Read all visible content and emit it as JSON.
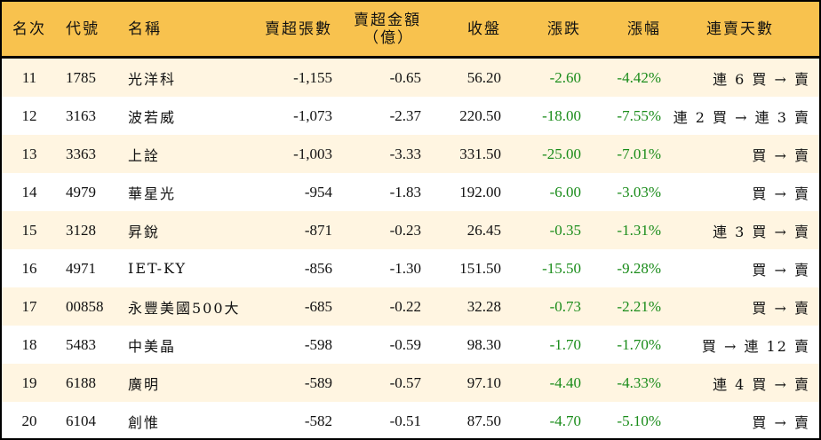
{
  "headers": {
    "rank": "名次",
    "code": "代號",
    "name": "名稱",
    "net_sell_lots": "賣超張數",
    "net_sell_amount": "賣超金額",
    "net_sell_amount_unit": "（億）",
    "close": "收盤",
    "change": "漲跌",
    "change_pct": "漲幅",
    "streak": "連賣天數"
  },
  "colors": {
    "header_bg": "#F8C24E",
    "alt_row_bg": "#FFF5E1",
    "negative": "#1A8C1A"
  },
  "rows": [
    {
      "rank": "11",
      "code": "1785",
      "name": "光洋科",
      "lots": "-1,155",
      "amount": "-0.65",
      "close": "56.20",
      "change": "-2.60",
      "pct": "-4.42%",
      "streak": "連 6 買 → 賣"
    },
    {
      "rank": "12",
      "code": "3163",
      "name": "波若威",
      "lots": "-1,073",
      "amount": "-2.37",
      "close": "220.50",
      "change": "-18.00",
      "pct": "-7.55%",
      "streak": "連 2 買 → 連 3 賣"
    },
    {
      "rank": "13",
      "code": "3363",
      "name": "上詮",
      "lots": "-1,003",
      "amount": "-3.33",
      "close": "331.50",
      "change": "-25.00",
      "pct": "-7.01%",
      "streak": "買 → 賣"
    },
    {
      "rank": "14",
      "code": "4979",
      "name": "華星光",
      "lots": "-954",
      "amount": "-1.83",
      "close": "192.00",
      "change": "-6.00",
      "pct": "-3.03%",
      "streak": "買 → 賣"
    },
    {
      "rank": "15",
      "code": "3128",
      "name": "昇銳",
      "lots": "-871",
      "amount": "-0.23",
      "close": "26.45",
      "change": "-0.35",
      "pct": "-1.31%",
      "streak": "連 3 買 → 賣"
    },
    {
      "rank": "16",
      "code": "4971",
      "name": "IET-KY",
      "lots": "-856",
      "amount": "-1.30",
      "close": "151.50",
      "change": "-15.50",
      "pct": "-9.28%",
      "streak": "買 → 賣"
    },
    {
      "rank": "17",
      "code": "00858",
      "name": "永豐美國500大",
      "lots": "-685",
      "amount": "-0.22",
      "close": "32.28",
      "change": "-0.73",
      "pct": "-2.21%",
      "streak": "買 → 賣"
    },
    {
      "rank": "18",
      "code": "5483",
      "name": "中美晶",
      "lots": "-598",
      "amount": "-0.59",
      "close": "98.30",
      "change": "-1.70",
      "pct": "-1.70%",
      "streak": "買 → 連 12 賣"
    },
    {
      "rank": "19",
      "code": "6188",
      "name": "廣明",
      "lots": "-589",
      "amount": "-0.57",
      "close": "97.10",
      "change": "-4.40",
      "pct": "-4.33%",
      "streak": "連 4 買 → 賣"
    },
    {
      "rank": "20",
      "code": "6104",
      "name": "創惟",
      "lots": "-582",
      "amount": "-0.51",
      "close": "87.50",
      "change": "-4.70",
      "pct": "-5.10%",
      "streak": "買 → 賣"
    }
  ]
}
